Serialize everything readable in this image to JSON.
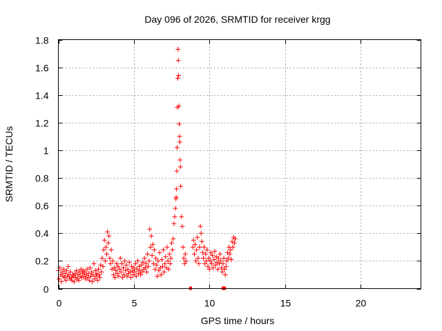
{
  "chart_data": {
    "type": "scatter",
    "title": "Day 096 of 2026, SRMTID for receiver krgg",
    "xlabel": "GPS time / hours",
    "ylabel": "SRMTID / TECUs",
    "xlim": [
      0,
      24
    ],
    "ylim": [
      0,
      1.8
    ],
    "xticks": [
      0,
      5,
      10,
      15,
      20
    ],
    "xtick_labels": [
      "0",
      "5",
      "10",
      "15",
      "20"
    ],
    "yticks": [
      0,
      0.2,
      0.4,
      0.6,
      0.8,
      1.0,
      1.2,
      1.4,
      1.6,
      1.8
    ],
    "ytick_labels": [
      "0",
      "0.2",
      "0.4",
      "0.6",
      "0.8",
      "1",
      "1.2",
      "1.4",
      "1.6",
      "1.8"
    ],
    "grid": true,
    "marker": "+",
    "color": "#ff0000",
    "series": [
      {
        "name": "SRMTID",
        "points": [
          [
            0.0,
            0.13
          ],
          [
            0.05,
            0.07
          ],
          [
            0.1,
            0.15
          ],
          [
            0.15,
            0.1
          ],
          [
            0.2,
            0.05
          ],
          [
            0.25,
            0.12
          ],
          [
            0.3,
            0.09
          ],
          [
            0.35,
            0.14
          ],
          [
            0.4,
            0.08
          ],
          [
            0.45,
            0.11
          ],
          [
            0.5,
            0.06
          ],
          [
            0.55,
            0.13
          ],
          [
            0.6,
            0.09
          ],
          [
            0.65,
            0.16
          ],
          [
            0.7,
            0.1
          ],
          [
            0.75,
            0.07
          ],
          [
            0.8,
            0.12
          ],
          [
            0.85,
            0.08
          ],
          [
            0.9,
            0.06
          ],
          [
            0.95,
            0.1
          ],
          [
            1.0,
            0.09
          ],
          [
            1.05,
            0.05
          ],
          [
            1.1,
            0.11
          ],
          [
            1.15,
            0.08
          ],
          [
            1.2,
            0.13
          ],
          [
            1.25,
            0.07
          ],
          [
            1.3,
            0.1
          ],
          [
            1.35,
            0.06
          ],
          [
            1.4,
            0.12
          ],
          [
            1.45,
            0.09
          ],
          [
            1.5,
            0.14
          ],
          [
            1.55,
            0.08
          ],
          [
            1.6,
            0.11
          ],
          [
            1.65,
            0.13
          ],
          [
            1.7,
            0.09
          ],
          [
            1.75,
            0.12
          ],
          [
            1.8,
            0.07
          ],
          [
            1.85,
            0.1
          ],
          [
            1.9,
            0.14
          ],
          [
            1.95,
            0.08
          ],
          [
            2.0,
            0.11
          ],
          [
            2.05,
            0.06
          ],
          [
            2.1,
            0.15
          ],
          [
            2.15,
            0.09
          ],
          [
            2.2,
            0.12
          ],
          [
            2.25,
            0.05
          ],
          [
            2.3,
            0.1
          ],
          [
            2.35,
            0.18
          ],
          [
            2.4,
            0.07
          ],
          [
            2.45,
            0.13
          ],
          [
            2.5,
            0.09
          ],
          [
            2.55,
            0.11
          ],
          [
            2.6,
            0.06
          ],
          [
            2.65,
            0.14
          ],
          [
            2.7,
            0.1
          ],
          [
            2.75,
            0.08
          ],
          [
            2.8,
            0.17
          ],
          [
            2.85,
            0.12
          ],
          [
            2.9,
            0.22
          ],
          [
            2.95,
            0.16
          ],
          [
            3.0,
            0.28
          ],
          [
            3.05,
            0.35
          ],
          [
            3.1,
            0.2
          ],
          [
            3.15,
            0.3
          ],
          [
            3.2,
            0.25
          ],
          [
            3.25,
            0.41
          ],
          [
            3.3,
            0.33
          ],
          [
            3.35,
            0.38
          ],
          [
            3.4,
            0.22
          ],
          [
            3.45,
            0.18
          ],
          [
            3.5,
            0.28
          ],
          [
            3.55,
            0.14
          ],
          [
            3.6,
            0.2
          ],
          [
            3.65,
            0.1
          ],
          [
            3.7,
            0.15
          ],
          [
            3.75,
            0.08
          ],
          [
            3.8,
            0.13
          ],
          [
            3.85,
            0.18
          ],
          [
            3.9,
            0.11
          ],
          [
            3.95,
            0.16
          ],
          [
            4.0,
            0.09
          ],
          [
            4.05,
            0.14
          ],
          [
            4.1,
            0.22
          ],
          [
            4.15,
            0.12
          ],
          [
            4.2,
            0.18
          ],
          [
            4.25,
            0.08
          ],
          [
            4.3,
            0.15
          ],
          [
            4.35,
            0.1
          ],
          [
            4.4,
            0.2
          ],
          [
            4.45,
            0.13
          ],
          [
            4.5,
            0.17
          ],
          [
            4.55,
            0.09
          ],
          [
            4.6,
            0.14
          ],
          [
            4.65,
            0.11
          ],
          [
            4.7,
            0.19
          ],
          [
            4.75,
            0.12
          ],
          [
            4.8,
            0.08
          ],
          [
            4.85,
            0.16
          ],
          [
            4.9,
            0.13
          ],
          [
            4.95,
            0.1
          ],
          [
            5.0,
            0.15
          ],
          [
            5.05,
            0.12
          ],
          [
            5.1,
            0.18
          ],
          [
            5.15,
            0.09
          ],
          [
            5.2,
            0.14
          ],
          [
            5.25,
            0.2
          ],
          [
            5.3,
            0.11
          ],
          [
            5.35,
            0.16
          ],
          [
            5.4,
            0.13
          ],
          [
            5.45,
            0.1
          ],
          [
            5.5,
            0.17
          ],
          [
            5.55,
            0.12
          ],
          [
            5.6,
            0.19
          ],
          [
            5.65,
            0.14
          ],
          [
            5.7,
            0.22
          ],
          [
            5.75,
            0.15
          ],
          [
            5.8,
            0.18
          ],
          [
            5.85,
            0.12
          ],
          [
            5.9,
            0.25
          ],
          [
            5.95,
            0.16
          ],
          [
            6.0,
            0.2
          ],
          [
            6.05,
            0.43
          ],
          [
            6.1,
            0.3
          ],
          [
            6.15,
            0.38
          ],
          [
            6.2,
            0.24
          ],
          [
            6.25,
            0.32
          ],
          [
            6.3,
            0.18
          ],
          [
            6.35,
            0.28
          ],
          [
            6.4,
            0.14
          ],
          [
            6.45,
            0.22
          ],
          [
            6.5,
            0.17
          ],
          [
            6.55,
            0.09
          ],
          [
            6.6,
            0.2
          ],
          [
            6.65,
            0.13
          ],
          [
            6.7,
            0.26
          ],
          [
            6.75,
            0.15
          ],
          [
            6.8,
            0.1
          ],
          [
            6.85,
            0.21
          ],
          [
            6.9,
            0.16
          ],
          [
            6.95,
            0.28
          ],
          [
            7.0,
            0.12
          ],
          [
            7.05,
            0.18
          ],
          [
            7.1,
            0.23
          ],
          [
            7.15,
            0.15
          ],
          [
            7.2,
            0.3
          ],
          [
            7.25,
            0.2
          ],
          [
            7.3,
            0.14
          ],
          [
            7.35,
            0.25
          ],
          [
            7.4,
            0.18
          ],
          [
            7.45,
            0.22
          ],
          [
            7.5,
            0.33
          ],
          [
            7.55,
            0.28
          ],
          [
            7.6,
            0.36
          ],
          [
            7.65,
            0.47
          ],
          [
            7.7,
            0.52
          ],
          [
            7.75,
            0.58
          ],
          [
            7.78,
            0.65
          ],
          [
            7.8,
            0.66
          ],
          [
            7.82,
            0.72
          ],
          [
            7.84,
            0.85
          ],
          [
            7.86,
            1.02
          ],
          [
            7.88,
            1.31
          ],
          [
            7.9,
            1.52
          ],
          [
            7.92,
            1.73
          ],
          [
            7.94,
            1.65
          ],
          [
            7.96,
            1.54
          ],
          [
            7.98,
            1.32
          ],
          [
            8.0,
            1.19
          ],
          [
            8.02,
            1.1
          ],
          [
            8.04,
            1.06
          ],
          [
            8.06,
            0.93
          ],
          [
            8.08,
            0.88
          ],
          [
            8.1,
            0.74
          ],
          [
            8.15,
            0.52
          ],
          [
            8.2,
            0.45
          ],
          [
            8.25,
            0.3
          ],
          [
            8.3,
            0.22
          ],
          [
            8.35,
            0.18
          ],
          [
            8.4,
            0.25
          ],
          [
            8.45,
            0.2
          ],
          [
            8.9,
            0.3
          ],
          [
            8.95,
            0.35
          ],
          [
            9.0,
            0.25
          ],
          [
            9.05,
            0.32
          ],
          [
            9.1,
            0.2
          ],
          [
            9.15,
            0.28
          ],
          [
            9.2,
            0.37
          ],
          [
            9.25,
            0.22
          ],
          [
            9.3,
            0.18
          ],
          [
            9.35,
            0.3
          ],
          [
            9.4,
            0.45
          ],
          [
            9.45,
            0.4
          ],
          [
            9.5,
            0.34
          ],
          [
            9.55,
            0.26
          ],
          [
            9.6,
            0.22
          ],
          [
            9.65,
            0.3
          ],
          [
            9.7,
            0.18
          ],
          [
            9.75,
            0.25
          ],
          [
            9.8,
            0.2
          ],
          [
            9.85,
            0.28
          ],
          [
            9.9,
            0.16
          ],
          [
            9.95,
            0.22
          ],
          [
            10.0,
            0.14
          ],
          [
            10.05,
            0.2
          ],
          [
            10.1,
            0.26
          ],
          [
            10.15,
            0.18
          ],
          [
            10.2,
            0.24
          ],
          [
            10.25,
            0.15
          ],
          [
            10.3,
            0.21
          ],
          [
            10.35,
            0.27
          ],
          [
            10.4,
            0.17
          ],
          [
            10.45,
            0.23
          ],
          [
            10.5,
            0.19
          ],
          [
            10.55,
            0.14
          ],
          [
            10.6,
            0.22
          ],
          [
            10.65,
            0.18
          ],
          [
            10.7,
            0.25
          ],
          [
            10.75,
            0.2
          ],
          [
            10.8,
            0.15
          ],
          [
            10.85,
            0.12
          ],
          [
            10.9,
            0.18
          ],
          [
            10.95,
            0.22
          ],
          [
            11.0,
            0.14
          ],
          [
            11.05,
            0.1
          ],
          [
            11.1,
            0.16
          ],
          [
            11.15,
            0.2
          ],
          [
            11.2,
            0.26
          ],
          [
            11.25,
            0.22
          ],
          [
            11.3,
            0.3
          ],
          [
            11.35,
            0.25
          ],
          [
            11.4,
            0.28
          ],
          [
            11.45,
            0.21
          ],
          [
            11.5,
            0.34
          ],
          [
            11.55,
            0.3
          ],
          [
            11.6,
            0.37
          ],
          [
            11.65,
            0.33
          ],
          [
            11.7,
            0.36
          ]
        ],
        "zero_points": [
          8.75,
          10.9,
          11.0
        ]
      }
    ]
  }
}
